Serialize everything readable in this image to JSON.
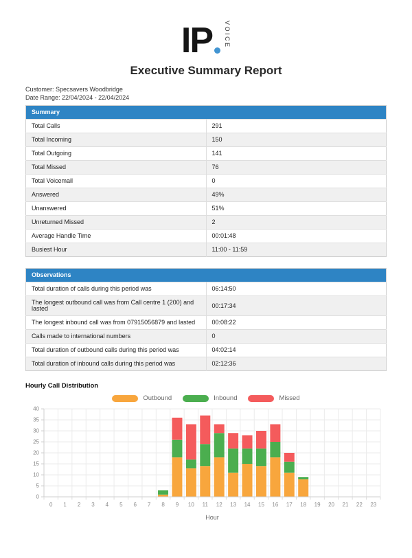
{
  "logo": {
    "text": "IP",
    "vertical_text": "VOICE"
  },
  "title": "Executive Summary Report",
  "meta": {
    "customer": "Customer: Specsavers Woodbridge",
    "date_range": "Date Range: 22/04/2024 - 22/04/2024"
  },
  "colors": {
    "table_header_blue": "#2E84C4",
    "logo_dot_blue": "#4295D2",
    "outbound_orange": "#F8A63D",
    "inbound_green": "#4BAE4F",
    "missed_red": "#F45B5C"
  },
  "summary_table": {
    "header": "Summary",
    "rows": [
      {
        "label": "Total Calls",
        "value": "291"
      },
      {
        "label": "Total Incoming",
        "value": "150"
      },
      {
        "label": "Total Outgoing",
        "value": "141"
      },
      {
        "label": "Total Missed",
        "value": "76"
      },
      {
        "label": "Total Voicemail",
        "value": "0"
      },
      {
        "label": "Answered",
        "value": "49%"
      },
      {
        "label": "Unanswered",
        "value": "51%"
      },
      {
        "label": "Unreturned Missed",
        "value": "2"
      },
      {
        "label": "Average Handle Time",
        "value": "00:01:48"
      },
      {
        "label": "Busiest Hour",
        "value": "11:00 - 11:59"
      }
    ]
  },
  "observations_table": {
    "header": "Observations",
    "rows": [
      {
        "label": "Total duration of calls during this period was",
        "value": "06:14:50"
      },
      {
        "label": "The longest outbound call was from Call centre 1 (200) and lasted",
        "value": "00:17:34"
      },
      {
        "label": "The longest inbound call was from 07915056879 and lasted",
        "value": "00:08:22"
      },
      {
        "label": "Calls made to international numbers",
        "value": "0"
      },
      {
        "label": "Total duration of outbound calls during this period was",
        "value": "04:02:14"
      },
      {
        "label": "Total duration of inbound calls during this period was",
        "value": "02:12:36"
      }
    ]
  },
  "chart_data": {
    "type": "bar",
    "stacked": true,
    "title": "Hourly Call Distribution",
    "xlabel": "Hour",
    "ylabel": "",
    "ylim": [
      0,
      40
    ],
    "ytick_step": 5,
    "grid": true,
    "legend_position": "top",
    "categories": [
      "0",
      "1",
      "2",
      "3",
      "4",
      "5",
      "6",
      "7",
      "8",
      "9",
      "10",
      "11",
      "12",
      "13",
      "14",
      "15",
      "16",
      "17",
      "18",
      "19",
      "20",
      "21",
      "22",
      "23"
    ],
    "series": [
      {
        "name": "Outbound",
        "color": "#F8A63D",
        "values": [
          0,
          0,
          0,
          0,
          0,
          0,
          0,
          0,
          1,
          18,
          13,
          14,
          18,
          11,
          15,
          14,
          18,
          11,
          8,
          0,
          0,
          0,
          0,
          0
        ]
      },
      {
        "name": "Inbound",
        "color": "#4BAE4F",
        "values": [
          0,
          0,
          0,
          0,
          0,
          0,
          0,
          0,
          2,
          8,
          4,
          10,
          11,
          11,
          7,
          8,
          7,
          5,
          1,
          0,
          0,
          0,
          0,
          0
        ]
      },
      {
        "name": "Missed",
        "color": "#F45B5C",
        "values": [
          0,
          0,
          0,
          0,
          0,
          0,
          0,
          0,
          0,
          10,
          16,
          13,
          4,
          7,
          6,
          8,
          8,
          4,
          0,
          0,
          0,
          0,
          0,
          0
        ]
      }
    ]
  }
}
